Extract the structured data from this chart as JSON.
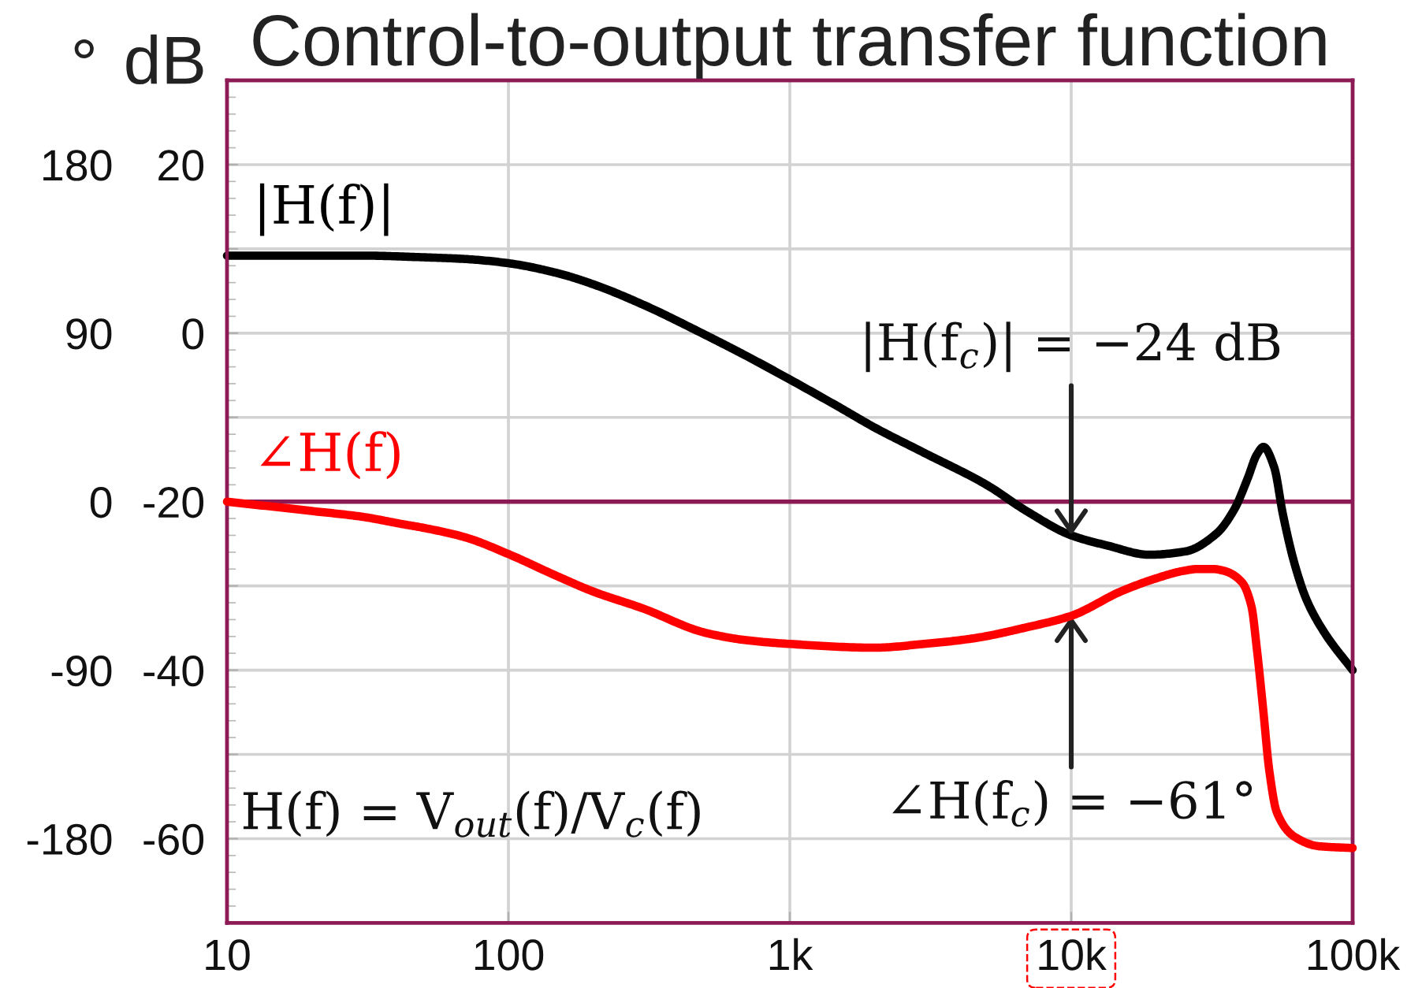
{
  "chart_data": {
    "type": "line",
    "title": "Control-to-output transfer function",
    "ylabel": "dB",
    "y2label": "°",
    "series": [
      {
        "name": "|H(f)|",
        "color": "#000000",
        "x": [
          10,
          20,
          30,
          50,
          70,
          100,
          150,
          200,
          300,
          500,
          700,
          1000,
          1500,
          2000,
          3000,
          5000,
          7000,
          10000,
          13400,
          19000,
          25500,
          32800,
          38000,
          42300,
          45700,
          48200,
          52600,
          56600,
          62200,
          68700,
          79600,
          100000
        ],
        "values": [
          9.2,
          9.2,
          9.2,
          9.0,
          8.8,
          8.3,
          7.1,
          5.8,
          3.4,
          -0.2,
          -2.7,
          -5.5,
          -8.8,
          -11.2,
          -14.2,
          -18.0,
          -21.2,
          -24.0,
          -25.2,
          -26.3,
          -25.9,
          -23.8,
          -20.9,
          -17.3,
          -14.4,
          -13.5,
          -15.9,
          -21.6,
          -27.4,
          -31.7,
          -35.6,
          -40.0
        ]
      },
      {
        "name": "∠H(f)",
        "color": "#ff0000",
        "axis": "y2",
        "x": [
          10,
          20,
          30,
          42,
          50,
          70,
          100,
          145,
          200,
          300,
          500,
          700,
          1000,
          2000,
          3000,
          4500,
          7000,
          10000,
          15000,
          20000,
          25000,
          28000,
          32000,
          35000,
          40400,
          43700,
          45700,
          48100,
          50600,
          53800,
          62200,
          75700,
          100000
        ],
        "values": [
          0,
          -5,
          -8,
          -12,
          -14,
          -19,
          -28,
          -39,
          -48,
          -57,
          -70,
          -74,
          -76,
          -78,
          -76,
          -73,
          -67,
          -61,
          -48,
          -41,
          -37,
          -36,
          -36,
          -37,
          -43,
          -56,
          -79,
          -111,
          -144,
          -166,
          -179,
          -184,
          -185
        ]
      }
    ],
    "xlim": [
      10,
      100000
    ],
    "xticks": [
      10,
      100,
      {
        "value": 1000,
        "label": "1k"
      },
      {
        "value": 10000,
        "label": "10k"
      },
      {
        "value": 100000,
        "label": "100k"
      }
    ],
    "ylim": [
      -70,
      30
    ],
    "yticks": [
      -60,
      {
        "value": -50,
        "label": null
      },
      -40,
      {
        "value": -30,
        "label": null
      },
      -20,
      {
        "value": -10,
        "label": null
      },
      0,
      {
        "value": 10,
        "label": null
      },
      20
    ],
    "y2lim": [
      -225,
      225
    ],
    "y2ticks": [
      -180,
      -90,
      0,
      90,
      180
    ],
    "log": "x",
    "grid": true,
    "ref_lines": [
      {
        "axis": "y",
        "value": -20,
        "color": "#8b1a55"
      }
    ],
    "annotations": [
      {
        "text": "|H(f$_{c}$)| = −24 dB",
        "x": 10000,
        "y": -24
      },
      {
        "text": "∠H(f$_{c}$) = −61°",
        "x": 10000,
        "y": -33.6
      },
      "H(f) = V$_{out}$(f)/V$_{c}$(f)"
    ]
  }
}
